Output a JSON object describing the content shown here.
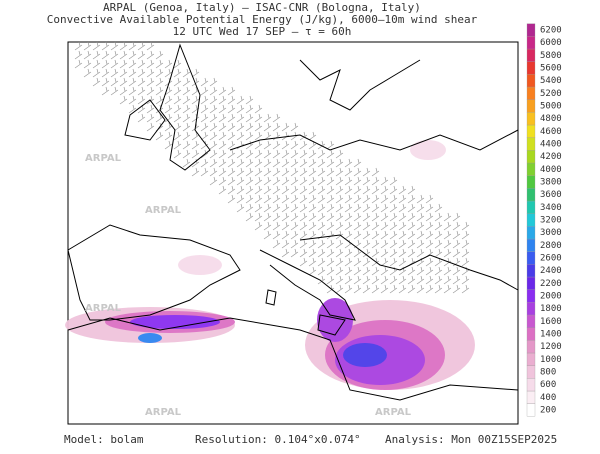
{
  "header": {
    "lines": [
      "ARPAL (Genoa, Italy)  –  ISAC-CNR (Bologna, Italy)",
      "Convective Available Potential Energy (J/kg), 6000–10m wind shear",
      "12 UTC Wed 17 SEP  –  τ = 60h"
    ]
  },
  "watermark": "ARPAL",
  "colorbar": {
    "ticks": [
      200,
      400,
      600,
      800,
      1000,
      1200,
      1400,
      1600,
      1800,
      2000,
      2200,
      2400,
      2600,
      2800,
      3000,
      3200,
      3400,
      3600,
      3800,
      4000,
      4200,
      4400,
      4600,
      4800,
      5000,
      5200,
      5400,
      5600,
      5800,
      6000,
      6200
    ],
    "colors": [
      "#ffffff",
      "#fbeef4",
      "#f6dcea",
      "#f0c4dc",
      "#eaaed0",
      "#e498c8",
      "#dc70c4",
      "#c858d0",
      "#a840e0",
      "#8a2ef0",
      "#6a28e8",
      "#4a3ce8",
      "#3a5cf0",
      "#2f84f0",
      "#2aa8e8",
      "#22c8d8",
      "#20c8b0",
      "#30c070",
      "#50c840",
      "#80d030",
      "#a8d820",
      "#d0e020",
      "#f0e020",
      "#f8c020",
      "#f8a020",
      "#f88020",
      "#f05820",
      "#e83830",
      "#d82860",
      "#c82888",
      "#b02890"
    ]
  },
  "footer": {
    "model": "Model: bolam",
    "resolution": "Resolution: 0.104°x0.074°",
    "analysis": "Analysis: Mon 00Z15SEP2025"
  }
}
